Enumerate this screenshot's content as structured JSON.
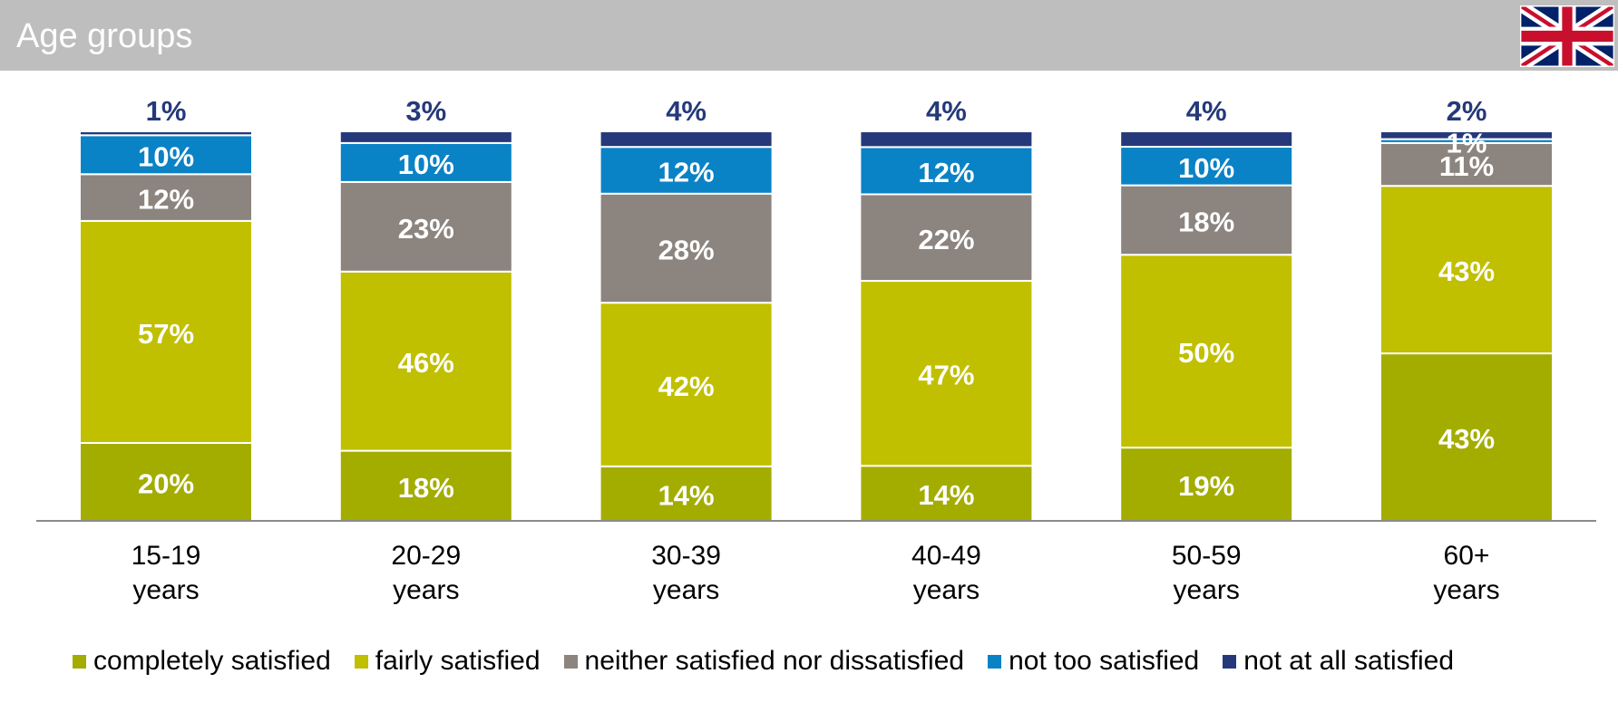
{
  "header": {
    "title": "Age groups",
    "flag_icon": "union-jack-flag-icon"
  },
  "chart_data": {
    "type": "bar",
    "stacked": true,
    "categories": [
      "15-19 years",
      "20-29 years",
      "30-39 years",
      "40-49 years",
      "50-59 years",
      "60+ years"
    ],
    "category_lines": [
      [
        "15-19",
        "years"
      ],
      [
        "20-29",
        "years"
      ],
      [
        "30-39",
        "years"
      ],
      [
        "40-49",
        "years"
      ],
      [
        "50-59",
        "years"
      ],
      [
        "60+",
        "years"
      ]
    ],
    "series": [
      {
        "name": "completely satisfied",
        "color": "#a3ad00",
        "values": [
          20,
          18,
          14,
          14,
          19,
          43
        ]
      },
      {
        "name": "fairly satisfied",
        "color": "#c0bf00",
        "values": [
          57,
          46,
          42,
          47,
          50,
          43
        ]
      },
      {
        "name": "neither satisfied nor dissatisfied",
        "color": "#8c847f",
        "values": [
          12,
          23,
          28,
          22,
          18,
          11
        ]
      },
      {
        "name": "not too satisfied",
        "color": "#0a82c6",
        "values": [
          10,
          10,
          12,
          12,
          10,
          1
        ]
      },
      {
        "name": "not at all satisfied",
        "color": "#25397a",
        "values": [
          1,
          3,
          4,
          4,
          4,
          2
        ]
      }
    ],
    "unit": "%",
    "ylim": [
      0,
      100
    ],
    "legend_position": "bottom",
    "grid": false
  }
}
